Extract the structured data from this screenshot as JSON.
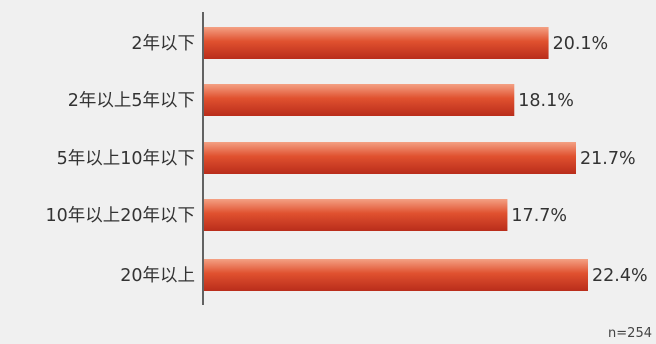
{
  "chart_data": {
    "type": "bar",
    "orientation": "horizontal",
    "categories": [
      "2年以下",
      "2年以上5年以下",
      "5年以上10年以下",
      "10年以上20年以下",
      "20年以上"
    ],
    "values": [
      20.1,
      18.1,
      21.7,
      17.7,
      22.4
    ],
    "value_labels": [
      "20.1%",
      "18.1%",
      "21.7%",
      "17.7%",
      "22.4%"
    ],
    "unit": "%",
    "xlim": [
      0,
      22.4
    ],
    "grid": false,
    "title": "",
    "xlabel": "",
    "ylabel": ""
  },
  "note": "n=254",
  "colors": {
    "bar_top": "#f4a184",
    "bar_mid": "#e0512f",
    "bar_bottom": "#b92d1b",
    "axis": "#333333",
    "background": "#f0f0f0"
  }
}
